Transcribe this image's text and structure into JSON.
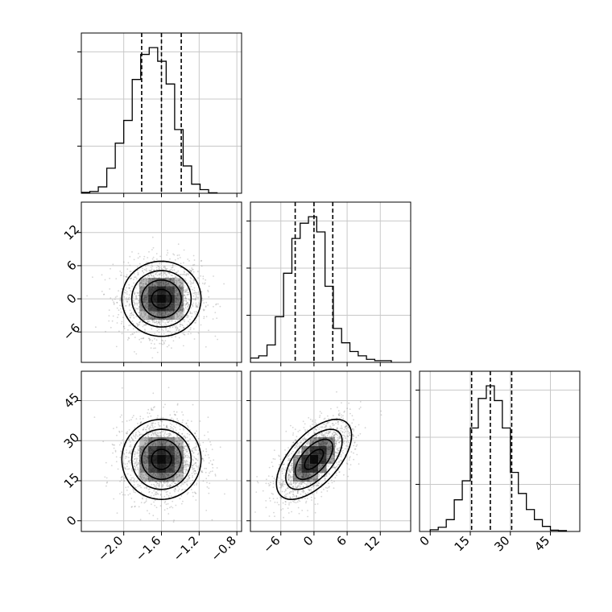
{
  "chart_data": {
    "type": "corner",
    "grid": true,
    "style": {
      "line_color": "#000000",
      "grid_color": "#c8c8c8",
      "scatter_color": "#888888",
      "density_color": "#000000"
    },
    "parameters": [
      {
        "index": 0,
        "range": [
          -2.45,
          -0.75
        ],
        "ticks": [
          -2.0,
          -1.6,
          -1.2,
          -0.8
        ],
        "tick_labels": [
          "−2.0",
          "−1.6",
          "−1.2",
          "−0.8"
        ],
        "quantiles": [
          -1.81,
          -1.6,
          -1.39
        ],
        "mean": -1.6,
        "sd": 0.21
      },
      {
        "index": 1,
        "range": [
          -11.5,
          17.5
        ],
        "ticks": [
          -6,
          0,
          6,
          12
        ],
        "tick_labels": [
          "−6",
          "0",
          "6",
          "12"
        ],
        "quantiles": [
          -3.4,
          0.0,
          3.4
        ],
        "mean": 0.0,
        "sd": 3.4
      },
      {
        "index": 2,
        "range": [
          -4,
          56
        ],
        "ticks": [
          0,
          15,
          30,
          45
        ],
        "tick_labels": [
          "0",
          "15",
          "30",
          "45"
        ],
        "quantiles": [
          15.5,
          22.5,
          30.5
        ],
        "mean": 23.0,
        "sd": 7.5
      }
    ],
    "histograms": [
      {
        "param": 0,
        "bin_edges": [
          -2.45,
          -2.36,
          -2.27,
          -2.18,
          -2.09,
          -2.0,
          -1.91,
          -1.82,
          -1.73,
          -1.64,
          -1.55,
          -1.46,
          -1.37,
          -1.28,
          -1.19,
          -1.1,
          -1.01
        ],
        "counts": [
          2,
          4,
          14,
          55,
          110,
          160,
          250,
          305,
          320,
          290,
          240,
          140,
          60,
          20,
          8,
          1
        ]
      },
      {
        "param": 1,
        "bin_edges": [
          -11.5,
          -10.0,
          -8.5,
          -7.0,
          -5.5,
          -4.0,
          -2.5,
          -1.0,
          0.5,
          2.0,
          3.5,
          5.0,
          6.5,
          8.0,
          9.5,
          11.0,
          12.5,
          14.0
        ],
        "counts": [
          10,
          15,
          40,
          105,
          205,
          285,
          320,
          335,
          300,
          175,
          78,
          45,
          25,
          15,
          7,
          4,
          4
        ]
      },
      {
        "param": 2,
        "bin_edges": [
          0,
          3,
          6,
          9,
          12,
          15,
          18,
          21,
          24,
          27,
          30,
          33,
          36,
          39,
          42,
          45,
          48,
          51
        ],
        "counts": [
          4,
          10,
          28,
          75,
          120,
          245,
          315,
          345,
          310,
          245,
          140,
          90,
          52,
          28,
          12,
          3,
          2
        ]
      }
    ],
    "joint": [
      {
        "x_param": 0,
        "y_param": 1,
        "correlation": 0.0
      },
      {
        "x_param": 0,
        "y_param": 2,
        "correlation": 0.0
      },
      {
        "x_param": 1,
        "y_param": 2,
        "correlation": 0.6
      }
    ],
    "contour_levels_sigma": [
      0.5,
      1.0,
      1.5,
      2.0
    ]
  }
}
